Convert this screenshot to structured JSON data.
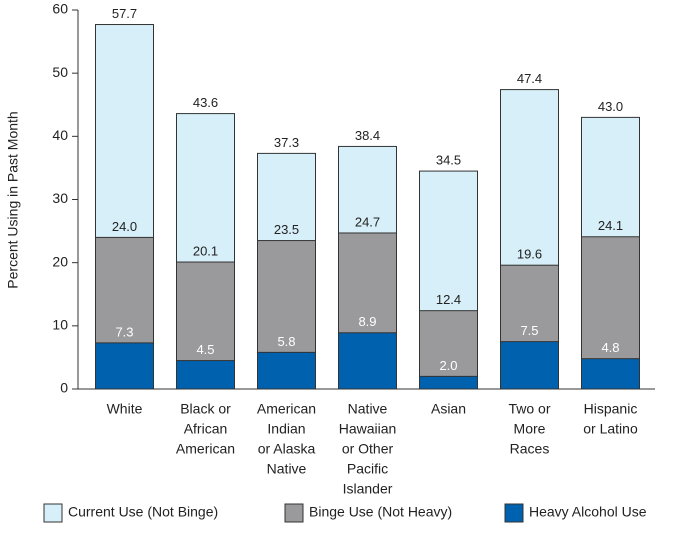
{
  "chart_data": {
    "type": "bar",
    "layout": "overlapping",
    "ylabel": "Percent Using in Past Month",
    "categories": [
      [
        "White"
      ],
      [
        "Black or",
        "African",
        "American"
      ],
      [
        "American",
        "Indian",
        "or Alaska",
        "Native"
      ],
      [
        "Native",
        "Hawaiian",
        "or Other",
        "Pacific",
        "Islander"
      ],
      [
        "Asian"
      ],
      [
        "Two or",
        "More",
        "Races"
      ],
      [
        "Hispanic",
        "or Latino"
      ]
    ],
    "series": [
      {
        "name": "Current Use (Not Binge)",
        "color": "#d6eff8",
        "values": [
          57.7,
          43.6,
          37.3,
          38.4,
          34.5,
          47.4,
          43.0
        ],
        "value_labels": [
          "57.7",
          "43.6",
          "37.3",
          "38.4",
          "34.5",
          "47.4",
          "43.0"
        ]
      },
      {
        "name": "Binge Use (Not Heavy)",
        "color": "#9a9a9c",
        "values": [
          24.0,
          20.1,
          23.5,
          24.7,
          12.4,
          19.6,
          24.1
        ],
        "value_labels": [
          "24.0",
          "20.1",
          "23.5",
          "24.7",
          "12.4",
          "19.6",
          "24.1"
        ]
      },
      {
        "name": "Heavy Alcohol Use",
        "color": "#0061ae",
        "values": [
          7.3,
          4.5,
          5.8,
          8.9,
          2.0,
          7.5,
          4.8
        ],
        "value_labels": [
          "7.3",
          "4.5",
          "5.8",
          "8.9",
          "2.0",
          "7.5",
          "4.8"
        ]
      }
    ],
    "ylim": [
      0,
      60
    ],
    "yticks": [
      0,
      10,
      20,
      30,
      40,
      50,
      60
    ]
  }
}
